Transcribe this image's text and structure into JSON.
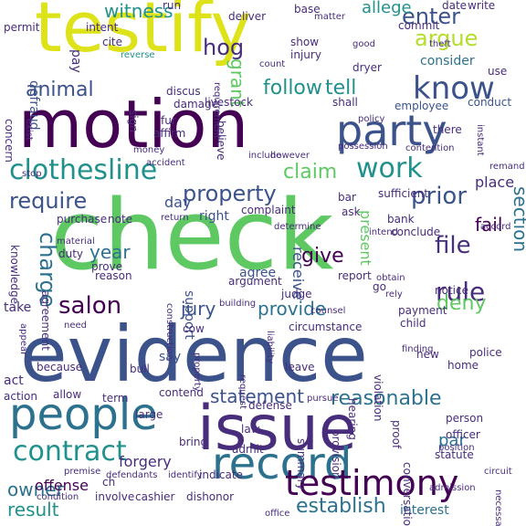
{
  "words": [
    {
      "text": "check",
      "color": "#5ec962"
    },
    {
      "text": "evidence",
      "color": "#3b528b"
    },
    {
      "text": "testify",
      "color": "#dde318"
    },
    {
      "text": "motion",
      "color": "#440154"
    },
    {
      "text": "issue",
      "color": "#472d7b"
    },
    {
      "text": "party",
      "color": "#3b528b"
    },
    {
      "text": "record",
      "color": "#2c728e"
    },
    {
      "text": "people",
      "color": "#2c728e"
    },
    {
      "text": "testimony",
      "color": "#440154"
    },
    {
      "text": "contract",
      "color": "#21918c"
    },
    {
      "text": "clothesline",
      "color": "#21918c"
    },
    {
      "text": "know",
      "color": "#3b528b"
    },
    {
      "text": "work",
      "color": "#21918c"
    },
    {
      "text": "property",
      "color": "#3b528b"
    },
    {
      "text": "require",
      "color": "#3b528b"
    },
    {
      "text": "prior",
      "color": "#3b528b"
    },
    {
      "text": "rule",
      "color": "#472d7b"
    },
    {
      "text": "salon",
      "color": "#440154"
    },
    {
      "text": "file",
      "color": "#472d7b"
    },
    {
      "text": "charge",
      "color": "#2c728e"
    },
    {
      "text": "enter",
      "color": "#3b528b"
    },
    {
      "text": "argue",
      "color": "#b5de2b"
    },
    {
      "text": "claim",
      "color": "#5ec962"
    },
    {
      "text": "reasonable",
      "color": "#2c728e"
    },
    {
      "text": "establish",
      "color": "#2c728e"
    },
    {
      "text": "witness",
      "color": "#21918c"
    },
    {
      "text": "allege",
      "color": "#21918c"
    },
    {
      "text": "animal",
      "color": "#3b528b"
    },
    {
      "text": "follow",
      "color": "#21918c"
    },
    {
      "text": "tell",
      "color": "#21918c"
    },
    {
      "text": "hog",
      "color": "#472d7b"
    },
    {
      "text": "grant",
      "color": "#5ec962"
    },
    {
      "text": "year",
      "color": "#2c728e"
    },
    {
      "text": "give",
      "color": "#440154"
    },
    {
      "text": "provide",
      "color": "#2c728e"
    },
    {
      "text": "deny",
      "color": "#5ec962"
    },
    {
      "text": "section",
      "color": "#2c728e"
    },
    {
      "text": "statement",
      "color": "#3b528b"
    },
    {
      "text": "owner",
      "color": "#2c728e"
    },
    {
      "text": "result",
      "color": "#21918c"
    },
    {
      "text": "jury",
      "color": "#3b528b"
    },
    {
      "text": "par",
      "color": "#2c728e"
    },
    {
      "text": "defraud",
      "color": "#3b528b"
    },
    {
      "text": "consider",
      "color": "#2c728e"
    },
    {
      "text": "fail",
      "color": "#440154"
    },
    {
      "text": "place",
      "color": "#472d7b"
    },
    {
      "text": "forgery",
      "color": "#472d7b"
    },
    {
      "text": "offense",
      "color": "#440154"
    },
    {
      "text": "interest",
      "color": "#2c728e"
    },
    {
      "text": "receive",
      "color": "#3b528b"
    },
    {
      "text": "present",
      "color": "#5ec962"
    },
    {
      "text": "support",
      "color": "#3b528b"
    },
    {
      "text": "agree",
      "color": "#3b528b"
    },
    {
      "text": "day",
      "color": "#3b528b"
    },
    {
      "text": "right",
      "color": "#3b528b"
    },
    {
      "text": "employee",
      "color": "#3b528b"
    },
    {
      "text": "conduct",
      "color": "#3b528b"
    },
    {
      "text": "dryer",
      "color": "#472d7b"
    },
    {
      "text": "deliver",
      "color": "#472d7b"
    },
    {
      "text": "run",
      "color": "#472d7b"
    },
    {
      "text": "base",
      "color": "#472d7b"
    },
    {
      "text": "commit",
      "color": "#472d7b"
    },
    {
      "text": "date",
      "color": "#472d7b"
    },
    {
      "text": "write",
      "color": "#472d7b"
    },
    {
      "text": "permit",
      "color": "#472d7b"
    },
    {
      "text": "intent",
      "color": "#472d7b"
    },
    {
      "text": "cite",
      "color": "#472d7b"
    },
    {
      "text": "reverse",
      "color": "#21918c"
    },
    {
      "text": "show",
      "color": "#472d7b"
    },
    {
      "text": "injury",
      "color": "#472d7b"
    },
    {
      "text": "good",
      "color": "#472d7b"
    },
    {
      "text": "use",
      "color": "#472d7b"
    },
    {
      "text": "pay",
      "color": "#472d7b"
    },
    {
      "text": "discus",
      "color": "#472d7b"
    },
    {
      "text": "damage",
      "color": "#472d7b"
    },
    {
      "text": "livestock",
      "color": "#472d7b"
    },
    {
      "text": "shall",
      "color": "#472d7b"
    },
    {
      "text": "fur",
      "color": "#472d7b"
    },
    {
      "text": "affirm",
      "color": "#472d7b"
    },
    {
      "text": "sign",
      "color": "#472d7b"
    },
    {
      "text": "believe",
      "color": "#472d7b"
    },
    {
      "text": "include",
      "color": "#472d7b"
    },
    {
      "text": "however",
      "color": "#472d7b"
    },
    {
      "text": "concern",
      "color": "#472d7b"
    },
    {
      "text": "exist",
      "color": "#472d7b"
    },
    {
      "text": "money",
      "color": "#472d7b"
    },
    {
      "text": "there",
      "color": "#472d7b"
    },
    {
      "text": "stop",
      "color": "#472d7b"
    },
    {
      "text": "bar",
      "color": "#472d7b"
    },
    {
      "text": "sufficient",
      "color": "#472d7b"
    },
    {
      "text": "remand",
      "color": "#472d7b"
    },
    {
      "text": "ask",
      "color": "#472d7b"
    },
    {
      "text": "bank",
      "color": "#472d7b"
    },
    {
      "text": "conclude",
      "color": "#472d7b"
    },
    {
      "text": "purchase",
      "color": "#472d7b"
    },
    {
      "text": "note",
      "color": "#472d7b"
    },
    {
      "text": "return",
      "color": "#472d7b"
    },
    {
      "text": "complaint",
      "color": "#472d7b"
    },
    {
      "text": "knowledge",
      "color": "#472d7b"
    },
    {
      "text": "duty",
      "color": "#472d7b"
    },
    {
      "text": "prove",
      "color": "#472d7b"
    },
    {
      "text": "reason",
      "color": "#472d7b"
    },
    {
      "text": "argument",
      "color": "#472d7b"
    },
    {
      "text": "report",
      "color": "#472d7b"
    },
    {
      "text": "go",
      "color": "#472d7b"
    },
    {
      "text": "notice",
      "color": "#472d7b"
    },
    {
      "text": "take",
      "color": "#472d7b"
    },
    {
      "text": "agreement",
      "color": "#472d7b"
    },
    {
      "text": "judge",
      "color": "#472d7b"
    },
    {
      "text": "payment",
      "color": "#472d7b"
    },
    {
      "text": "child",
      "color": "#472d7b"
    },
    {
      "text": "cow",
      "color": "#472d7b"
    },
    {
      "text": "circumstance",
      "color": "#472d7b"
    },
    {
      "text": "say",
      "color": "#3b528b"
    },
    {
      "text": "because",
      "color": "#472d7b"
    },
    {
      "text": "bull",
      "color": "#472d7b"
    },
    {
      "text": "leave",
      "color": "#472d7b"
    },
    {
      "text": "home",
      "color": "#472d7b"
    },
    {
      "text": "police",
      "color": "#472d7b"
    },
    {
      "text": "new",
      "color": "#472d7b"
    },
    {
      "text": "act",
      "color": "#472d7b"
    },
    {
      "text": "action",
      "color": "#472d7b"
    },
    {
      "text": "allow",
      "color": "#472d7b"
    },
    {
      "text": "term",
      "color": "#472d7b"
    },
    {
      "text": "contend",
      "color": "#472d7b"
    },
    {
      "text": "defense",
      "color": "#472d7b"
    },
    {
      "text": "large",
      "color": "#472d7b"
    },
    {
      "text": "person",
      "color": "#472d7b"
    },
    {
      "text": "officer",
      "color": "#472d7b"
    },
    {
      "text": "law",
      "color": "#472d7b"
    },
    {
      "text": "bring",
      "color": "#472d7b"
    },
    {
      "text": "admit",
      "color": "#472d7b"
    },
    {
      "text": "indicate",
      "color": "#472d7b"
    },
    {
      "text": "statute",
      "color": "#472d7b"
    },
    {
      "text": "summary",
      "color": "#472d7b"
    },
    {
      "text": "provision",
      "color": "#472d7b"
    },
    {
      "text": "violation",
      "color": "#472d7b"
    },
    {
      "text": "hearing",
      "color": "#472d7b"
    },
    {
      "text": "proof",
      "color": "#472d7b"
    },
    {
      "text": "conversation",
      "color": "#472d7b"
    },
    {
      "text": "ch",
      "color": "#472d7b"
    },
    {
      "text": "involve",
      "color": "#472d7b"
    },
    {
      "text": "cashier",
      "color": "#472d7b"
    },
    {
      "text": "dishonor",
      "color": "#472d7b"
    },
    {
      "text": "defendants",
      "color": "#472d7b"
    },
    {
      "text": "condition",
      "color": "#472d7b"
    },
    {
      "text": "liability",
      "color": "#472d7b"
    },
    {
      "text": "construction",
      "color": "#472d7b"
    },
    {
      "text": "request",
      "color": "#472d7b"
    },
    {
      "text": "building",
      "color": "#472d7b"
    },
    {
      "text": "appear",
      "color": "#472d7b"
    },
    {
      "text": "office",
      "color": "#472d7b"
    },
    {
      "text": "circuit",
      "color": "#472d7b"
    },
    {
      "text": "position",
      "color": "#472d7b"
    },
    {
      "text": "admission",
      "color": "#472d7b"
    },
    {
      "text": "identify",
      "color": "#472d7b"
    },
    {
      "text": "premise",
      "color": "#472d7b"
    },
    {
      "text": "pursue",
      "color": "#472d7b"
    },
    {
      "text": "determine",
      "color": "#472d7b"
    },
    {
      "text": "intend",
      "color": "#472d7b"
    },
    {
      "text": "count",
      "color": "#472d7b"
    },
    {
      "text": "theft",
      "color": "#472d7b"
    },
    {
      "text": "matter",
      "color": "#472d7b"
    },
    {
      "text": "accord",
      "color": "#472d7b"
    },
    {
      "text": "contention",
      "color": "#472d7b"
    },
    {
      "text": "possession",
      "color": "#472d7b"
    },
    {
      "text": "policy",
      "color": "#472d7b"
    },
    {
      "text": "instant",
      "color": "#472d7b"
    },
    {
      "text": "accident",
      "color": "#472d7b"
    },
    {
      "text": "requirement",
      "color": "#472d7b"
    },
    {
      "text": "material",
      "color": "#472d7b"
    },
    {
      "text": "property",
      "color": "#472d7b"
    },
    {
      "text": "need",
      "color": "#472d7b"
    },
    {
      "text": "finding",
      "color": "#472d7b"
    },
    {
      "text": "obtain",
      "color": "#472d7b"
    },
    {
      "text": "rely",
      "color": "#472d7b"
    },
    {
      "text": "counsel",
      "color": "#472d7b"
    },
    {
      "text": "necessary",
      "color": "#472d7b"
    }
  ]
}
